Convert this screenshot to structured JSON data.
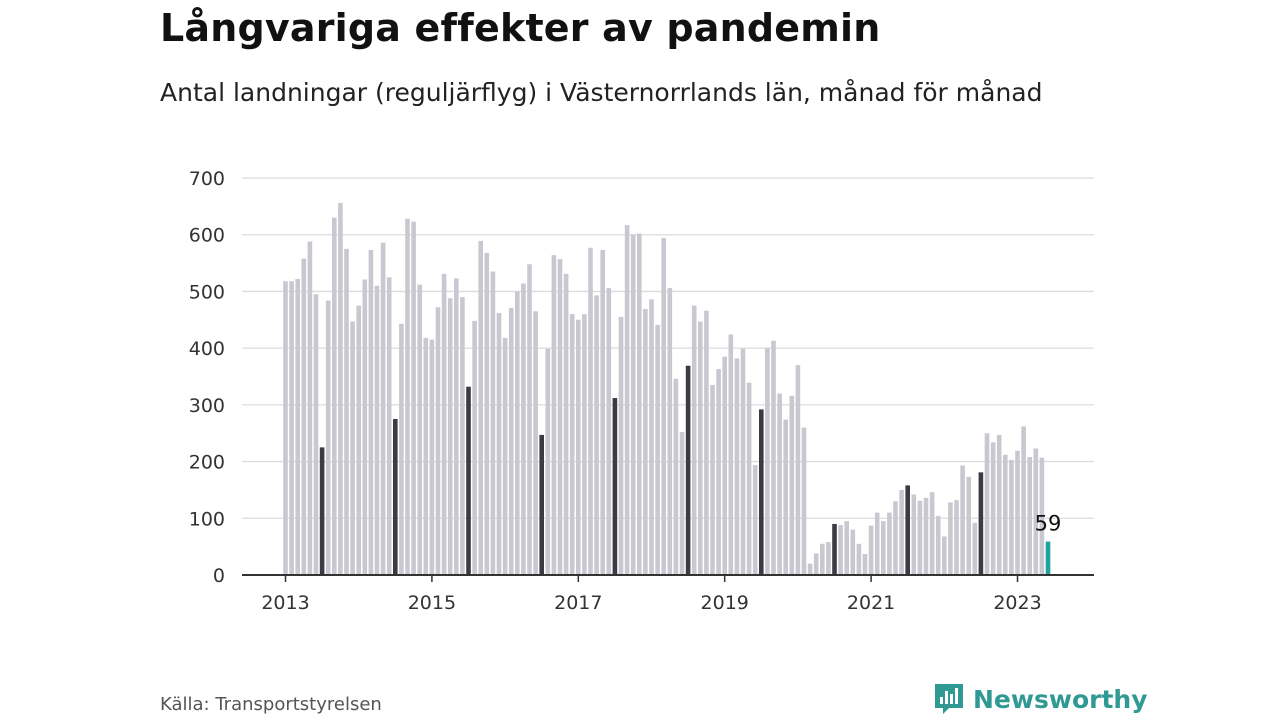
{
  "title": "Långvariga effekter av pandemin",
  "subtitle": "Antal landningar (reguljärflyg) i Västernorrlands län, månad för månad",
  "source": "Källa: Transportstyrelsen",
  "brand": {
    "name": "Newsworthy",
    "icon": "newsworthy-logo-icon",
    "color": "#2f9a93"
  },
  "colors": {
    "bar": "#c8c8d0",
    "highlight": "#3b3a45",
    "latest": "#1fa39c",
    "grid": "#dcdce0",
    "axis": "#333333"
  },
  "chart_data": {
    "type": "bar",
    "start": "2013-01",
    "frequency": "monthly",
    "ylim": [
      0,
      700
    ],
    "yticks": [
      0,
      100,
      200,
      300,
      400,
      500,
      600,
      700
    ],
    "xticks": [
      "2013",
      "2015",
      "2017",
      "2019",
      "2021",
      "2023"
    ],
    "grid": true,
    "highlight_month": "July",
    "values": [
      518,
      518,
      522,
      558,
      588,
      495,
      225,
      484,
      630,
      656,
      575,
      447,
      475,
      521,
      573,
      510,
      586,
      525,
      275,
      443,
      628,
      623,
      512,
      418,
      415,
      472,
      531,
      488,
      523,
      490,
      332,
      448,
      589,
      568,
      535,
      462,
      418,
      471,
      500,
      514,
      548,
      465,
      247,
      399,
      564,
      557,
      531,
      460,
      450,
      460,
      577,
      493,
      573,
      506,
      312,
      455,
      617,
      600,
      602,
      469,
      486,
      441,
      594,
      506,
      346,
      252,
      369,
      475,
      447,
      466,
      335,
      363,
      385,
      424,
      382,
      399,
      339,
      194,
      292,
      400,
      413,
      320,
      274,
      316,
      370,
      260,
      20,
      38,
      55,
      58,
      90,
      88,
      95,
      80,
      55,
      37,
      87,
      110,
      95,
      110,
      130,
      150,
      158,
      142,
      131,
      136,
      146,
      104,
      68,
      128,
      132,
      193,
      173,
      92,
      181,
      250,
      234,
      247,
      212,
      203,
      219,
      262,
      208,
      223,
      207,
      59
    ],
    "data_labels": [
      {
        "label": "59",
        "value": 59
      }
    ]
  }
}
